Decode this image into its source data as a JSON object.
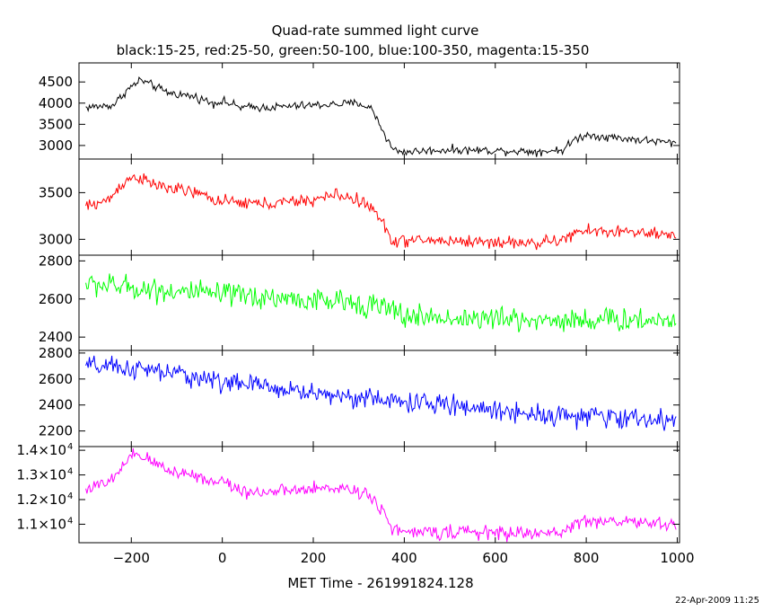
{
  "title": "Quad-rate summed light curve",
  "subtitle": "black:15-25, red:25-50, green:50-100, blue:100-350, magenta:15-350",
  "timestamp": "22-Apr-2009 11:25",
  "chart_data": {
    "type": "line",
    "xlabel": "MET Time - 261991824.128",
    "xlim": [
      -315,
      1005
    ],
    "xticks": [
      -200,
      0,
      200,
      400,
      600,
      800,
      1000
    ],
    "xtick_labels": [
      "−200",
      "0",
      "200",
      "400",
      "600",
      "800",
      "1000"
    ],
    "x_range": [
      -300,
      1000
    ],
    "panels": [
      {
        "name": "black",
        "color": "#000000",
        "ylim": [
          2680,
          4950
        ],
        "yticks": [
          3000,
          3500,
          4000,
          4500
        ],
        "ytick_labels": [
          "3000",
          "3500",
          "4000",
          "4500"
        ],
        "noise": 65,
        "profile": [
          [
            -300,
            3900
          ],
          [
            -240,
            3950
          ],
          [
            -210,
            4300
          ],
          [
            -180,
            4550
          ],
          [
            -160,
            4450
          ],
          [
            -120,
            4250
          ],
          [
            -60,
            4150
          ],
          [
            -20,
            4000
          ],
          [
            0,
            4050
          ],
          [
            40,
            3900
          ],
          [
            100,
            3900
          ],
          [
            200,
            3950
          ],
          [
            300,
            4000
          ],
          [
            330,
            3850
          ],
          [
            355,
            3300
          ],
          [
            375,
            2900
          ],
          [
            400,
            2850
          ],
          [
            500,
            2900
          ],
          [
            600,
            2880
          ],
          [
            700,
            2860
          ],
          [
            750,
            2900
          ],
          [
            775,
            3150
          ],
          [
            800,
            3250
          ],
          [
            900,
            3150
          ],
          [
            1000,
            3050
          ]
        ]
      },
      {
        "name": "red",
        "color": "#ff0000",
        "ylim": [
          2830,
          3860
        ],
        "yticks": [
          3000,
          3500
        ],
        "ytick_labels": [
          "3000",
          "3500"
        ],
        "noise": 45,
        "profile": [
          [
            -300,
            3350
          ],
          [
            -250,
            3420
          ],
          [
            -220,
            3600
          ],
          [
            -190,
            3680
          ],
          [
            -160,
            3600
          ],
          [
            -120,
            3550
          ],
          [
            -60,
            3500
          ],
          [
            0,
            3400
          ],
          [
            100,
            3380
          ],
          [
            200,
            3420
          ],
          [
            250,
            3480
          ],
          [
            300,
            3420
          ],
          [
            330,
            3330
          ],
          [
            355,
            3150
          ],
          [
            375,
            2980
          ],
          [
            450,
            2990
          ],
          [
            600,
            2970
          ],
          [
            700,
            2960
          ],
          [
            750,
            3000
          ],
          [
            790,
            3090
          ],
          [
            900,
            3080
          ],
          [
            1000,
            3020
          ]
        ]
      },
      {
        "name": "green",
        "color": "#00ff00",
        "ylim": [
          2330,
          2830
        ],
        "yticks": [
          2400,
          2600,
          2800
        ],
        "ytick_labels": [
          "2400",
          "2600",
          "2800"
        ],
        "noise": 42,
        "profile": [
          [
            -300,
            2680
          ],
          [
            -200,
            2660
          ],
          [
            -100,
            2640
          ],
          [
            0,
            2620
          ],
          [
            100,
            2610
          ],
          [
            200,
            2590
          ],
          [
            300,
            2580
          ],
          [
            350,
            2560
          ],
          [
            400,
            2510
          ],
          [
            500,
            2500
          ],
          [
            600,
            2495
          ],
          [
            700,
            2490
          ],
          [
            800,
            2490
          ],
          [
            900,
            2490
          ],
          [
            1000,
            2490
          ]
        ]
      },
      {
        "name": "blue",
        "color": "#0000ff",
        "ylim": [
          2080,
          2820
        ],
        "yticks": [
          2200,
          2400,
          2600,
          2800
        ],
        "ytick_labels": [
          "2200",
          "2400",
          "2600",
          "2800"
        ],
        "noise": 52,
        "profile": [
          [
            -300,
            2700
          ],
          [
            -200,
            2680
          ],
          [
            -100,
            2640
          ],
          [
            0,
            2580
          ],
          [
            100,
            2540
          ],
          [
            200,
            2490
          ],
          [
            300,
            2460
          ],
          [
            400,
            2420
          ],
          [
            500,
            2400
          ],
          [
            600,
            2360
          ],
          [
            700,
            2330
          ],
          [
            800,
            2310
          ],
          [
            900,
            2300
          ],
          [
            1000,
            2270
          ]
        ]
      },
      {
        "name": "magenta",
        "color": "#ff00ff",
        "ylim": [
          10250,
          14150
        ],
        "yticks": [
          11000,
          12000,
          13000,
          14000
        ],
        "ytick_labels": [
          "1.1×10",
          "1.2×10",
          "1.3×10",
          "1.4×10"
        ],
        "ytick_exponent": "4",
        "noise": 180,
        "profile": [
          [
            -300,
            12450
          ],
          [
            -250,
            12650
          ],
          [
            -220,
            13300
          ],
          [
            -190,
            13850
          ],
          [
            -160,
            13600
          ],
          [
            -120,
            13200
          ],
          [
            -60,
            13000
          ],
          [
            -20,
            12700
          ],
          [
            0,
            12800
          ],
          [
            40,
            12350
          ],
          [
            100,
            12300
          ],
          [
            200,
            12400
          ],
          [
            250,
            12500
          ],
          [
            300,
            12350
          ],
          [
            330,
            12100
          ],
          [
            355,
            11500
          ],
          [
            375,
            10800
          ],
          [
            400,
            10650
          ],
          [
            500,
            10700
          ],
          [
            600,
            10650
          ],
          [
            700,
            10620
          ],
          [
            750,
            10700
          ],
          [
            790,
            11150
          ],
          [
            900,
            11100
          ],
          [
            1000,
            10950
          ]
        ]
      }
    ]
  }
}
